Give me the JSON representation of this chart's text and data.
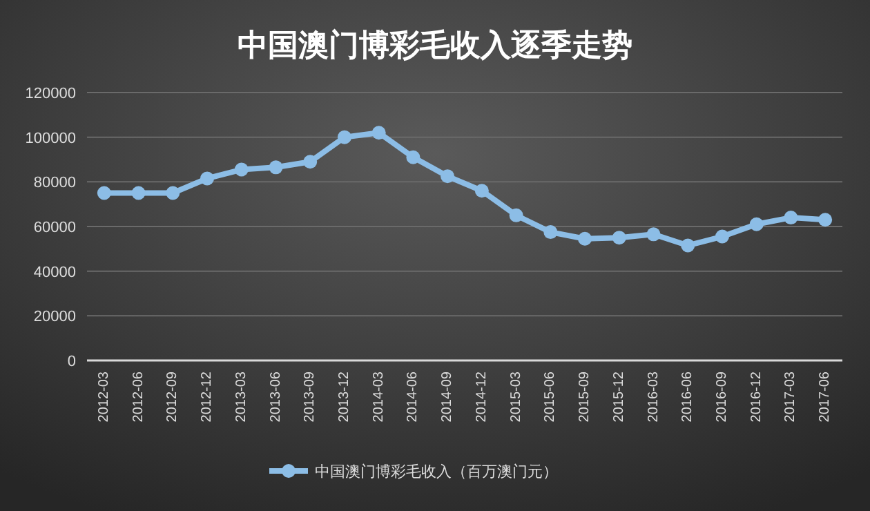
{
  "chart_data": {
    "type": "line",
    "title": "中国澳门博彩毛收入逐季走势",
    "categories": [
      "2012-03",
      "2012-06",
      "2012-09",
      "2012-12",
      "2013-03",
      "2013-06",
      "2013-09",
      "2013-12",
      "2014-03",
      "2014-06",
      "2014-09",
      "2014-12",
      "2015-03",
      "2015-06",
      "2015-09",
      "2015-12",
      "2016-03",
      "2016-06",
      "2016-09",
      "2016-12",
      "2017-03",
      "2017-06"
    ],
    "series": [
      {
        "name": "中国澳门博彩毛收入（百万澳门元）",
        "color": "#8cbde6",
        "values": [
          75000,
          75000,
          75000,
          81500,
          85500,
          86500,
          89000,
          100000,
          102000,
          91000,
          82500,
          76000,
          65000,
          57500,
          54500,
          55000,
          56500,
          51500,
          55500,
          61000,
          64000,
          63000
        ]
      }
    ],
    "ylim": [
      0,
      120000
    ],
    "yticks": [
      0,
      20000,
      40000,
      60000,
      80000,
      100000,
      120000
    ],
    "grid": "y",
    "legend": "bottom",
    "marker": "circle",
    "line_style": "solid"
  }
}
